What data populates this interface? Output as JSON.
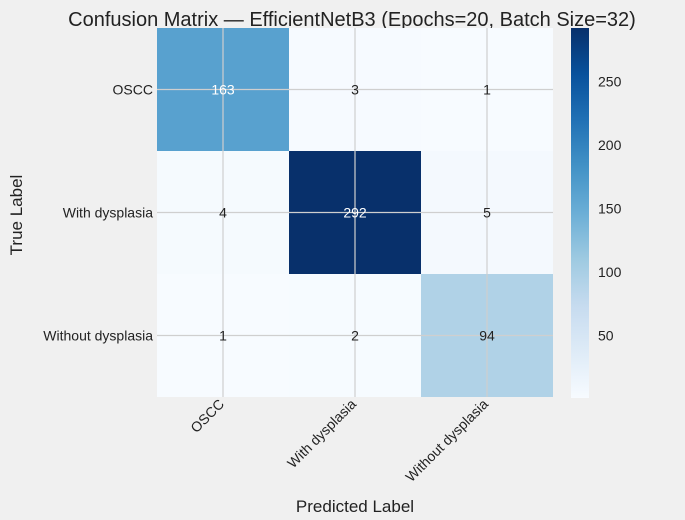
{
  "chart_data": {
    "type": "heatmap",
    "title": "Confusion Matrix — EfficientNetB3 (Epochs=20, Batch Size=32)",
    "xlabel": "Predicted Label",
    "ylabel": "True Label",
    "row_labels": [
      "OSCC",
      "With dysplasia",
      "Without dysplasia"
    ],
    "col_labels": [
      "OSCC",
      "With dysplasia",
      "Without dysplasia"
    ],
    "values": [
      [
        163,
        3,
        1
      ],
      [
        4,
        292,
        5
      ],
      [
        1,
        2,
        94
      ]
    ],
    "vmin": 1,
    "vmax": 292,
    "colormap": "Blues",
    "colorbar_ticks": [
      50,
      100,
      150,
      200,
      250
    ],
    "grid": true
  }
}
